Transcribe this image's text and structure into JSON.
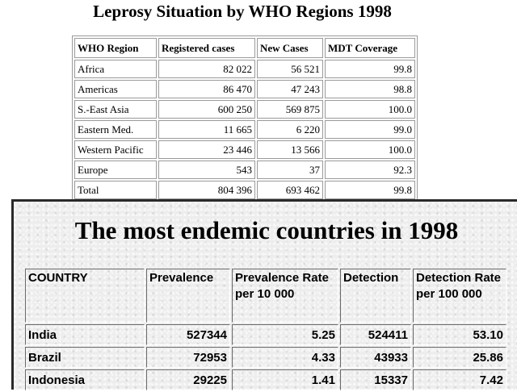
{
  "title1": "Leprosy Situation by WHO Regions 1998",
  "table1": {
    "headers": [
      "WHO Region",
      "Registered cases",
      "New Cases",
      "MDT Coverage"
    ],
    "rows": [
      [
        "Africa",
        "82 022",
        "56 521",
        "99.8"
      ],
      [
        "Americas",
        "86 470",
        "47 243",
        "98.8"
      ],
      [
        "S.-East Asia",
        "600 250",
        "569 875",
        "100.0"
      ],
      [
        "Eastern Med.",
        "11 665",
        "6 220",
        "99.0"
      ],
      [
        "Western Pacific",
        "23 446",
        "13 566",
        "100.0"
      ],
      [
        "Europe",
        "543",
        "37",
        "92.3"
      ],
      [
        "Total",
        "804 396",
        "693 462",
        "99.8"
      ]
    ]
  },
  "title2": "The most endemic countries in 1998",
  "table2": {
    "headers": [
      "COUNTRY",
      "Prevalence",
      "Prevalence Rate per  10 000",
      "Detection",
      "Detection Rate per 100 000"
    ],
    "rows": [
      [
        "India",
        "527344",
        "5.25",
        "524411",
        "53.10"
      ],
      [
        "Brazil",
        "72953",
        "4.33",
        "43933",
        "25.86"
      ],
      [
        "Indonesia",
        "29225",
        "1.41",
        "15337",
        "7.42"
      ]
    ]
  }
}
